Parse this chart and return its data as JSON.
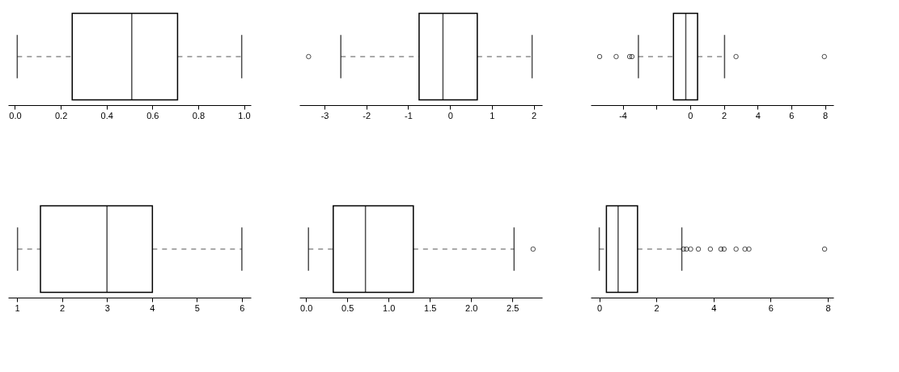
{
  "chart_data": [
    {
      "type": "box",
      "orientation": "horizontal",
      "xlim": [
        -0.03,
        1.03
      ],
      "xticks": [
        {
          "value": 0,
          "label": "0.0"
        },
        0.2,
        0.4,
        0.6,
        0.8,
        {
          "value": 1,
          "label": "1.0"
        }
      ],
      "boxes": [
        {
          "low": 0.01,
          "q1": 0.25,
          "median": 0.51,
          "q3": 0.71,
          "high": 0.99
        }
      ]
    },
    {
      "type": "box",
      "orientation": "horizontal",
      "xlim": [
        -3.6,
        2.2
      ],
      "xticks": [
        -3,
        -2,
        -1,
        0,
        1,
        2
      ],
      "boxes": [
        {
          "low": -2.61,
          "q1": -0.74,
          "median": -0.17,
          "q3": 0.65,
          "high": 1.96,
          "outliers": [
            -3.38
          ]
        }
      ]
    },
    {
      "type": "box",
      "orientation": "horizontal",
      "xlim": [
        -5.9,
        8.5
      ],
      "xticks": [
        -4,
        {
          "value": -2,
          "label": null
        },
        0,
        2,
        4,
        6,
        8
      ],
      "boxes": [
        {
          "low": -3.07,
          "q1": -0.99,
          "median": -0.26,
          "q3": 0.44,
          "high": 2.04,
          "outliers": [
            -5.37,
            -4.39,
            -3.59,
            -3.45,
            2.72,
            7.96
          ]
        }
      ]
    },
    {
      "type": "box",
      "orientation": "horizontal",
      "xlim": [
        0.8,
        6.2
      ],
      "xticks": [
        1,
        2,
        3,
        4,
        5,
        6
      ],
      "boxes": [
        {
          "low": 1.01,
          "q1": 1.52,
          "median": 3.0,
          "q3": 4.01,
          "high": 6.0
        }
      ]
    },
    {
      "type": "box",
      "orientation": "horizontal",
      "xlim": [
        -0.08,
        2.86
      ],
      "xticks": [
        {
          "value": 0,
          "label": "0.0"
        },
        0.5,
        {
          "value": 1,
          "label": "1.0"
        },
        1.5,
        {
          "value": 2,
          "label": "2.0"
        },
        2.5
      ],
      "boxes": [
        {
          "low": 0.03,
          "q1": 0.33,
          "median": 0.72,
          "q3": 1.3,
          "high": 2.52,
          "outliers": [
            2.75
          ]
        }
      ]
    },
    {
      "type": "box",
      "orientation": "horizontal",
      "xlim": [
        -0.3,
        8.2
      ],
      "xticks": [
        0,
        2,
        4,
        6,
        8
      ],
      "boxes": [
        {
          "low": 0.0,
          "q1": 0.25,
          "median": 0.66,
          "q3": 1.34,
          "high": 2.89,
          "outliers": [
            2.95,
            3.05,
            3.2,
            3.47,
            3.89,
            4.26,
            4.37,
            4.79,
            5.1,
            5.24,
            7.89
          ]
        }
      ]
    }
  ]
}
